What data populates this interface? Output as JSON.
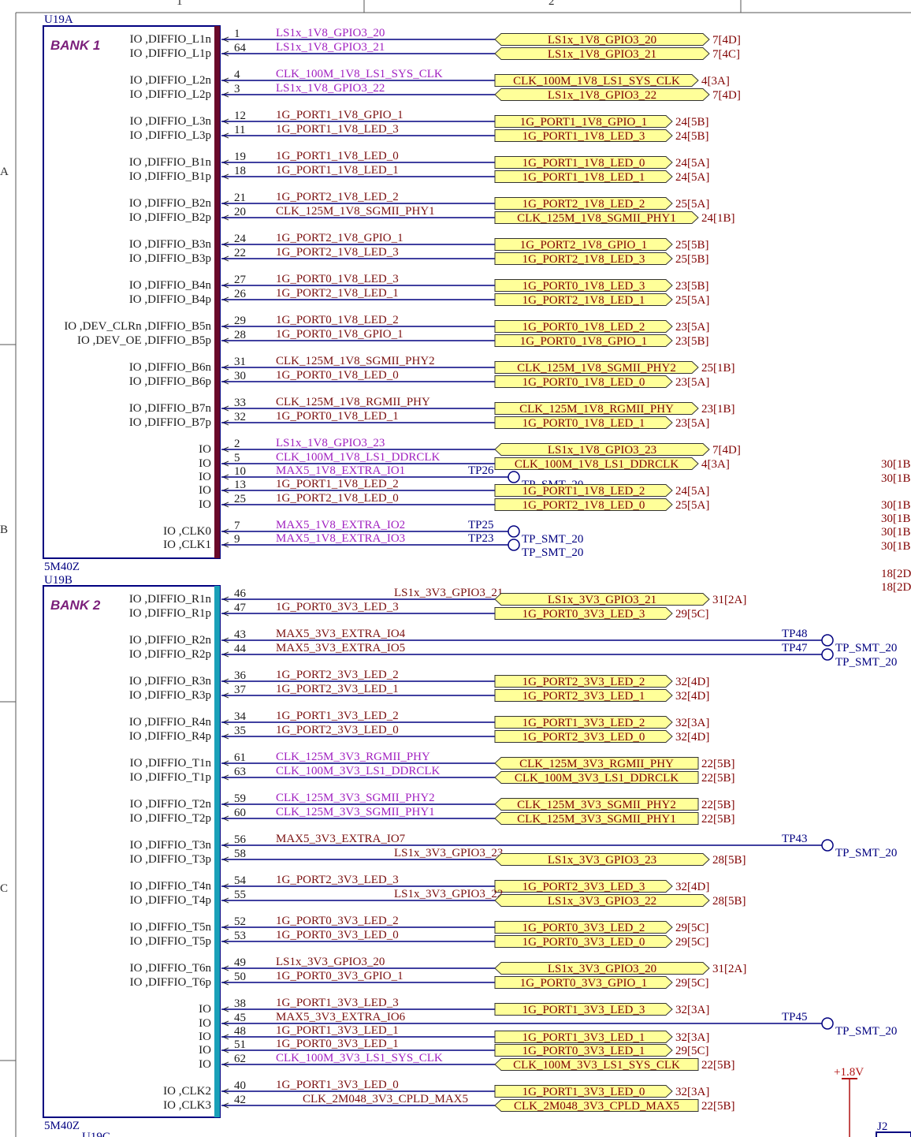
{
  "frame": {
    "top_labels": [
      "1",
      "2"
    ],
    "row_labels": [
      "A",
      "B",
      "C"
    ],
    "right_refs_top": [
      "30[1B]",
      "30[1B]",
      "30[1B]",
      "30[1B]",
      "30[1B]",
      "30[1B]"
    ],
    "right_refs_mid": [
      "18[2D]",
      "18[2D]"
    ],
    "power_label": "+1.8V",
    "connector_label": "J2",
    "next_part": "U19C"
  },
  "colors": {
    "wire": "#000080",
    "port_fill": "#ffff99",
    "bank1_bar": "#6a0a2a",
    "bank2_bar": "#1aa0b8",
    "net_plain": "#7a1010",
    "net_purple": "#a020c0"
  },
  "part_a": {
    "designator": "U19A",
    "bank_label": "BANK 1",
    "footer": "5M40Z",
    "rows": [
      {
        "y": 50,
        "pin": "IO ,DIFFIO_L1n",
        "num": "1",
        "net": "LS1x_1V8_GPIO3_20",
        "net_color": "purple",
        "port": "LS1x_1V8_GPIO3_20",
        "ref": "7[4D]",
        "bidir": true
      },
      {
        "y": 68,
        "pin": "IO ,DIFFIO_L1p",
        "num": "64",
        "net": "LS1x_1V8_GPIO3_21",
        "net_color": "purple",
        "port": "LS1x_1V8_GPIO3_21",
        "ref": "7[4C]",
        "bidir": true
      },
      {
        "y": 102,
        "pin": "IO ,DIFFIO_L2n",
        "num": "4",
        "net": "CLK_100M_1V8_LS1_SYS_CLK",
        "net_color": "purple",
        "port": "CLK_100M_1V8_LS1_SYS_CLK",
        "ref": "4[3A]",
        "bidir": false
      },
      {
        "y": 120,
        "pin": "IO ,DIFFIO_L2p",
        "num": "3",
        "net": "LS1x_1V8_GPIO3_22",
        "net_color": "purple",
        "port": "LS1x_1V8_GPIO3_22",
        "ref": "7[4D]",
        "bidir": true
      },
      {
        "y": 154,
        "pin": "IO ,DIFFIO_L3n",
        "num": "12",
        "net": "1G_PORT1_1V8_GPIO_1",
        "net_color": "plain",
        "port": "1G_PORT1_1V8_GPIO_1",
        "ref": "24[5B]",
        "bidir": false
      },
      {
        "y": 172,
        "pin": "IO ,DIFFIO_L3p",
        "num": "11",
        "net": "1G_PORT1_1V8_LED_3",
        "net_color": "plain",
        "port": "1G_PORT1_1V8_LED_3",
        "ref": "24[5B]",
        "bidir": false
      },
      {
        "y": 206,
        "pin": "IO ,DIFFIO_B1n",
        "num": "19",
        "net": "1G_PORT1_1V8_LED_0",
        "net_color": "plain",
        "port": "1G_PORT1_1V8_LED_0",
        "ref": "24[5A]",
        "bidir": false
      },
      {
        "y": 224,
        "pin": "IO ,DIFFIO_B1p",
        "num": "18",
        "net": "1G_PORT1_1V8_LED_1",
        "net_color": "plain",
        "port": "1G_PORT1_1V8_LED_1",
        "ref": "24[5A]",
        "bidir": false
      },
      {
        "y": 258,
        "pin": "IO ,DIFFIO_B2n",
        "num": "21",
        "net": "1G_PORT2_1V8_LED_2",
        "net_color": "plain",
        "port": "1G_PORT2_1V8_LED_2",
        "ref": "25[5A]",
        "bidir": false
      },
      {
        "y": 276,
        "pin": "IO ,DIFFIO_B2p",
        "num": "20",
        "net": "CLK_125M_1V8_SGMII_PHY1",
        "net_color": "plain",
        "port": "CLK_125M_1V8_SGMII_PHY1",
        "ref": "24[1B]",
        "bidir": false
      },
      {
        "y": 310,
        "pin": "IO ,DIFFIO_B3n",
        "num": "24",
        "net": "1G_PORT2_1V8_GPIO_1",
        "net_color": "plain",
        "port": "1G_PORT2_1V8_GPIO_1",
        "ref": "25[5B]",
        "bidir": false
      },
      {
        "y": 328,
        "pin": "IO ,DIFFIO_B3p",
        "num": "22",
        "net": "1G_PORT2_1V8_LED_3",
        "net_color": "plain",
        "port": "1G_PORT2_1V8_LED_3",
        "ref": "25[5B]",
        "bidir": false
      },
      {
        "y": 362,
        "pin": "IO ,DIFFIO_B4n",
        "num": "27",
        "net": "1G_PORT0_1V8_LED_3",
        "net_color": "plain",
        "port": "1G_PORT0_1V8_LED_3",
        "ref": "23[5B]",
        "bidir": false
      },
      {
        "y": 380,
        "pin": "IO ,DIFFIO_B4p",
        "num": "26",
        "net": "1G_PORT2_1V8_LED_1",
        "net_color": "plain",
        "port": "1G_PORT2_1V8_LED_1",
        "ref": "25[5A]",
        "bidir": false
      },
      {
        "y": 414,
        "pin": "IO ,DEV_CLRn ,DIFFIO_B5n",
        "num": "29",
        "net": "1G_PORT0_1V8_LED_2",
        "net_color": "plain",
        "port": "1G_PORT0_1V8_LED_2",
        "ref": "23[5A]",
        "bidir": false
      },
      {
        "y": 432,
        "pin": "IO ,DEV_OE ,DIFFIO_B5p",
        "num": "28",
        "net": "1G_PORT0_1V8_GPIO_1",
        "net_color": "plain",
        "port": "1G_PORT0_1V8_GPIO_1",
        "ref": "23[5B]",
        "bidir": false
      },
      {
        "y": 466,
        "pin": "IO ,DIFFIO_B6n",
        "num": "31",
        "net": "CLK_125M_1V8_SGMII_PHY2",
        "net_color": "plain",
        "port": "CLK_125M_1V8_SGMII_PHY2",
        "ref": "25[1B]",
        "bidir": false
      },
      {
        "y": 484,
        "pin": "IO ,DIFFIO_B6p",
        "num": "30",
        "net": "1G_PORT0_1V8_LED_0",
        "net_color": "plain",
        "port": "1G_PORT0_1V8_LED_0",
        "ref": "23[5A]",
        "bidir": false
      },
      {
        "y": 518,
        "pin": "IO ,DIFFIO_B7n",
        "num": "33",
        "net": "CLK_125M_1V8_RGMII_PHY",
        "net_color": "plain",
        "port": "CLK_125M_1V8_RGMII_PHY",
        "ref": "23[1B]",
        "bidir": false
      },
      {
        "y": 536,
        "pin": "IO ,DIFFIO_B7p",
        "num": "32",
        "net": "1G_PORT0_1V8_LED_1",
        "net_color": "plain",
        "port": "1G_PORT0_1V8_LED_1",
        "ref": "23[5A]",
        "bidir": false
      },
      {
        "y": 570,
        "pin": "IO",
        "num": "2",
        "net": "LS1x_1V8_GPIO3_23",
        "net_color": "purple",
        "port": "LS1x_1V8_GPIO3_23",
        "ref": "7[4D]",
        "bidir": true
      },
      {
        "y": 588,
        "pin": "IO",
        "num": "5",
        "net": "CLK_100M_1V8_LS1_DDRCLK",
        "net_color": "purple",
        "port": "CLK_100M_1V8_LS1_DDRCLK",
        "ref": "4[3A]",
        "bidir": false
      },
      {
        "y": 605,
        "pin": "IO",
        "num": "10",
        "net": "MAX5_1V8_EXTRA_IO1",
        "net_color": "purple",
        "tp": "TP26",
        "tp_x": 652,
        "tp_label": "TP_SMT_20"
      },
      {
        "y": 622,
        "pin": "IO",
        "num": "13",
        "net": "1G_PORT1_1V8_LED_2",
        "net_color": "plain",
        "port": "1G_PORT1_1V8_LED_2",
        "ref": "24[5A]",
        "bidir": false
      },
      {
        "y": 640,
        "pin": "IO",
        "num": "25",
        "net": "1G_PORT2_1V8_LED_0",
        "net_color": "plain",
        "port": "1G_PORT2_1V8_LED_0",
        "ref": "25[5A]",
        "bidir": false
      },
      {
        "y": 674,
        "pin": "IO ,CLK0",
        "num": "7",
        "net": "MAX5_1V8_EXTRA_IO2",
        "net_color": "purple",
        "tp": "TP25",
        "tp_x": 652,
        "tp_label": "TP_SMT_20"
      },
      {
        "y": 691,
        "pin": "IO ,CLK1",
        "num": "9",
        "net": "MAX5_1V8_EXTRA_IO3",
        "net_color": "purple",
        "tp": "TP23",
        "tp_x": 652,
        "tp_label": "TP_SMT_20"
      }
    ]
  },
  "part_b": {
    "designator": "U19B",
    "bank_label": "BANK 2",
    "footer": "5M40Z",
    "rows": [
      {
        "y": 760,
        "pin": "IO ,DIFFIO_R1n",
        "num": "46",
        "net": "LS1x_3V3_GPIO3_21",
        "net_color": "plain",
        "net_offset": 150,
        "port": "LS1x_3V3_GPIO3_21",
        "ref": "31[2A]",
        "bidir": true
      },
      {
        "y": 778,
        "pin": "IO ,DIFFIO_R1p",
        "num": "47",
        "net": "1G_PORT0_3V3_LED_3",
        "net_color": "plain",
        "port": "1G_PORT0_3V3_LED_3",
        "ref": "29[5C]",
        "bidir": false
      },
      {
        "y": 812,
        "pin": "IO ,DIFFIO_R2n",
        "num": "43",
        "net": "MAX5_3V3_EXTRA_IO4",
        "net_color": "plain",
        "tp": "TP48",
        "tp_x": 1050,
        "tp_label": "TP_SMT_20"
      },
      {
        "y": 830,
        "pin": "IO ,DIFFIO_R2p",
        "num": "44",
        "net": "MAX5_3V3_EXTRA_IO5",
        "net_color": "plain",
        "tp": "TP47",
        "tp_x": 1050,
        "tp_label": "TP_SMT_20"
      },
      {
        "y": 864,
        "pin": "IO ,DIFFIO_R3n",
        "num": "36",
        "net": "1G_PORT2_3V3_LED_2",
        "net_color": "plain",
        "port": "1G_PORT2_3V3_LED_2",
        "ref": "32[4D]",
        "bidir": false
      },
      {
        "y": 882,
        "pin": "IO ,DIFFIO_R3p",
        "num": "37",
        "net": "1G_PORT2_3V3_LED_1",
        "net_color": "plain",
        "port": "1G_PORT2_3V3_LED_1",
        "ref": "32[4D]",
        "bidir": false
      },
      {
        "y": 916,
        "pin": "IO ,DIFFIO_R4n",
        "num": "34",
        "net": "1G_PORT1_3V3_LED_2",
        "net_color": "plain",
        "port": "1G_PORT1_3V3_LED_2",
        "ref": "32[3A]",
        "bidir": false
      },
      {
        "y": 934,
        "pin": "IO ,DIFFIO_R4p",
        "num": "35",
        "net": "1G_PORT2_3V3_LED_0",
        "net_color": "plain",
        "port": "1G_PORT2_3V3_LED_0",
        "ref": "32[4D]",
        "bidir": false
      },
      {
        "y": 968,
        "pin": "IO ,DIFFIO_T1n",
        "num": "61",
        "net": "CLK_125M_3V3_RGMII_PHY",
        "net_color": "purple",
        "port": "CLK_125M_3V3_RGMII_PHY",
        "ref": "22[5B]",
        "bidir": false,
        "dir": "in"
      },
      {
        "y": 986,
        "pin": "IO ,DIFFIO_T1p",
        "num": "63",
        "net": "CLK_100M_3V3_LS1_DDRCLK",
        "net_color": "purple",
        "port": "CLK_100M_3V3_LS1_DDRCLK",
        "ref": "22[5B]",
        "bidir": false,
        "dir": "in"
      },
      {
        "y": 1020,
        "pin": "IO ,DIFFIO_T2n",
        "num": "59",
        "net": "CLK_125M_3V3_SGMII_PHY2",
        "net_color": "purple",
        "port": "CLK_125M_3V3_SGMII_PHY2",
        "ref": "22[5B]",
        "bidir": false,
        "dir": "in"
      },
      {
        "y": 1038,
        "pin": "IO ,DIFFIO_T2p",
        "num": "60",
        "net": "CLK_125M_3V3_SGMII_PHY1",
        "net_color": "purple",
        "port": "CLK_125M_3V3_SGMII_PHY1",
        "ref": "22[5B]",
        "bidir": false,
        "dir": "in"
      },
      {
        "y": 1072,
        "pin": "IO ,DIFFIO_T3n",
        "num": "56",
        "net": "MAX5_3V3_EXTRA_IO7",
        "net_color": "plain",
        "tp": "TP43",
        "tp_x": 1050,
        "tp_label": "TP_SMT_20"
      },
      {
        "y": 1090,
        "pin": "IO ,DIFFIO_T3p",
        "num": "58",
        "net": "LS1x_3V3_GPIO3_23",
        "net_color": "plain",
        "net_offset": 150,
        "port": "LS1x_3V3_GPIO3_23",
        "ref": "28[5B]",
        "bidir": true
      },
      {
        "y": 1124,
        "pin": "IO ,DIFFIO_T4n",
        "num": "54",
        "net": "1G_PORT2_3V3_LED_3",
        "net_color": "plain",
        "port": "1G_PORT2_3V3_LED_3",
        "ref": "32[4D]",
        "bidir": false
      },
      {
        "y": 1142,
        "pin": "IO ,DIFFIO_T4p",
        "num": "55",
        "net": "LS1x_3V3_GPIO3_22",
        "net_color": "plain",
        "net_offset": 150,
        "port": "LS1x_3V3_GPIO3_22",
        "ref": "28[5B]",
        "bidir": true
      },
      {
        "y": 1176,
        "pin": "IO ,DIFFIO_T5n",
        "num": "52",
        "net": "1G_PORT0_3V3_LED_2",
        "net_color": "plain",
        "port": "1G_PORT0_3V3_LED_2",
        "ref": "29[5C]",
        "bidir": false
      },
      {
        "y": 1194,
        "pin": "IO ,DIFFIO_T5p",
        "num": "53",
        "net": "1G_PORT0_3V3_LED_0",
        "net_color": "plain",
        "port": "1G_PORT0_3V3_LED_0",
        "ref": "29[5C]",
        "bidir": false
      },
      {
        "y": 1228,
        "pin": "IO ,DIFFIO_T6n",
        "num": "49",
        "net": "LS1x_3V3_GPIO3_20",
        "net_color": "plain",
        "port": "LS1x_3V3_GPIO3_20",
        "ref": "31[2A]",
        "bidir": true
      },
      {
        "y": 1246,
        "pin": "IO ,DIFFIO_T6p",
        "num": "50",
        "net": "1G_PORT0_3V3_GPIO_1",
        "net_color": "plain",
        "port": "1G_PORT0_3V3_GPIO_1",
        "ref": "29[5C]",
        "bidir": false
      },
      {
        "y": 1280,
        "pin": "IO",
        "num": "38",
        "net": "1G_PORT1_3V3_LED_3",
        "net_color": "plain",
        "port": "1G_PORT1_3V3_LED_3",
        "ref": "32[3A]",
        "bidir": false
      },
      {
        "y": 1298,
        "pin": "IO",
        "num": "45",
        "net": "MAX5_3V3_EXTRA_IO6",
        "net_color": "plain",
        "tp": "TP45",
        "tp_x": 1050,
        "tp_label": "TP_SMT_20"
      },
      {
        "y": 1315,
        "pin": "IO",
        "num": "48",
        "net": "1G_PORT1_3V3_LED_1",
        "net_color": "plain",
        "port": "1G_PORT1_3V3_LED_1",
        "ref": "32[3A]",
        "bidir": false
      },
      {
        "y": 1332,
        "pin": "IO",
        "num": "51",
        "net": "1G_PORT0_3V3_LED_1",
        "net_color": "plain",
        "port": "1G_PORT0_3V3_LED_1",
        "ref": "29[5C]",
        "bidir": false
      },
      {
        "y": 1350,
        "pin": "IO",
        "num": "62",
        "net": "CLK_100M_3V3_LS1_SYS_CLK",
        "net_color": "purple",
        "port": "CLK_100M_3V3_LS1_SYS_CLK",
        "ref": "22[5B]",
        "bidir": false,
        "dir": "in"
      },
      {
        "y": 1384,
        "pin": "IO ,CLK2",
        "num": "40",
        "net": "1G_PORT1_3V3_LED_0",
        "net_color": "plain",
        "port": "1G_PORT1_3V3_LED_0",
        "ref": "32[3A]",
        "bidir": false
      },
      {
        "y": 1402,
        "pin": "IO ,CLK3",
        "num": "42",
        "net": "CLK_2M048_3V3_CPLD_MAX5",
        "net_color": "plain",
        "net_offset": 34,
        "port": "CLK_2M048_3V3_CPLD_MAX5",
        "ref": "22[5B]",
        "bidir": false,
        "dir": "in"
      }
    ]
  }
}
